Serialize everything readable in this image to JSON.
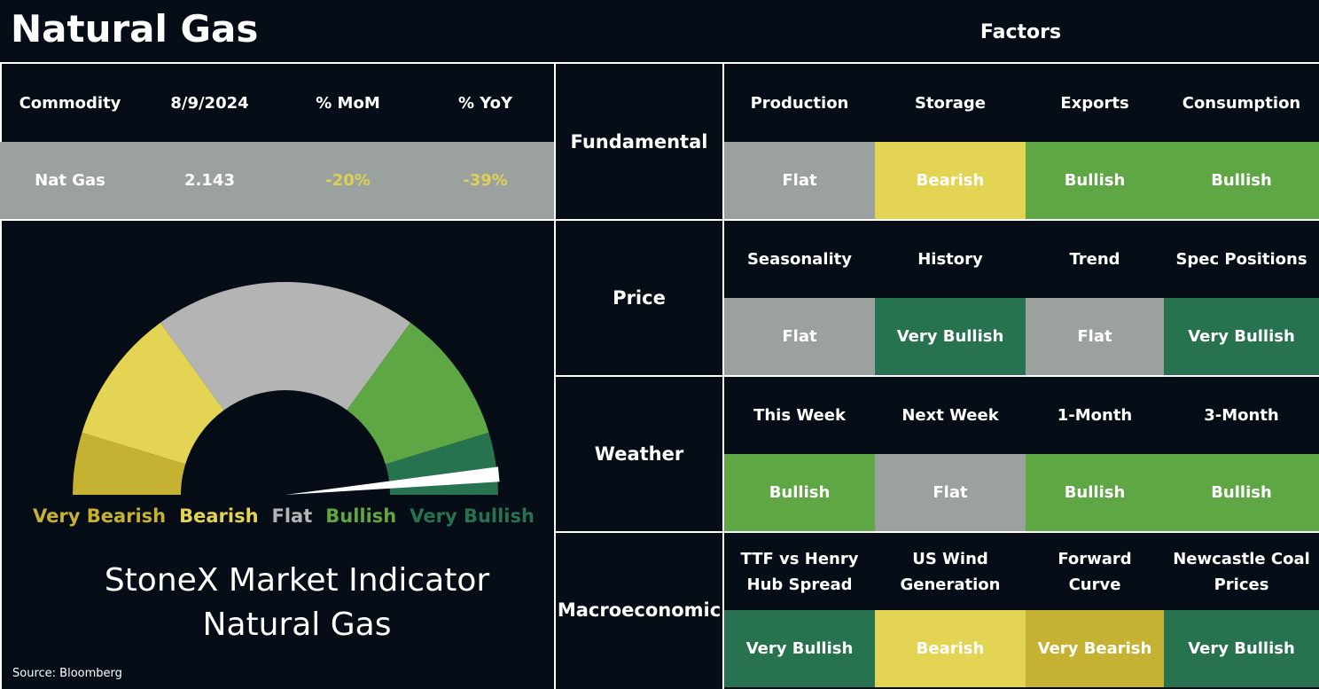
{
  "header": {
    "title": "Natural Gas",
    "factors_title": "Factors"
  },
  "commodity_table": {
    "columns": [
      "Commodity",
      "8/9/2024",
      "% MoM",
      "% YoY"
    ],
    "row": [
      "Nat Gas",
      "2.143",
      "-20%",
      "-39%"
    ],
    "row_colors": [
      "#ffffff",
      "#ffffff",
      "#e0cf55",
      "#e0cf55"
    ]
  },
  "gauge": {
    "type": "gauge",
    "segments": [
      {
        "name": "Very Bearish",
        "color": "#c5b232",
        "span": 17
      },
      {
        "name": "Bearish",
        "color": "#e3d454",
        "span": 37
      },
      {
        "name": "Flat",
        "color": "#b4b4b4",
        "span": 72
      },
      {
        "name": "Bullish",
        "color": "#5ea744",
        "span": 37
      },
      {
        "name": "Very Bullish",
        "color": "#277350",
        "span": 17
      }
    ],
    "needle": 174.5
  },
  "indicator_title": [
    "StoneX Market Indicator",
    "Natural Gas"
  ],
  "source": "Source: Bloomberg",
  "factor_groups": [
    {
      "group": "Fundamental",
      "factors": [
        {
          "name": "Production",
          "signal": "Flat",
          "color": "#9aa19f"
        },
        {
          "name": "Storage",
          "signal": "Bearish",
          "color": "#e3d454"
        },
        {
          "name": "Exports",
          "signal": "Bullish",
          "color": "#5ea744"
        },
        {
          "name": "Consumption",
          "signal": "Bullish",
          "color": "#5ea744"
        }
      ]
    },
    {
      "group": "Price",
      "factors": [
        {
          "name": "Seasonality",
          "signal": "Flat",
          "color": "#9aa19f"
        },
        {
          "name": "History",
          "signal": "Very Bullish",
          "color": "#277350"
        },
        {
          "name": "Trend",
          "signal": "Flat",
          "color": "#9aa19f"
        },
        {
          "name": "Spec Positions",
          "signal": "Very Bullish",
          "color": "#277350"
        }
      ]
    },
    {
      "group": "Weather",
      "factors": [
        {
          "name": "This Week",
          "signal": "Bullish",
          "color": "#5ea744"
        },
        {
          "name": "Next Week",
          "signal": "Flat",
          "color": "#9aa19f"
        },
        {
          "name": "1-Month",
          "signal": "Bullish",
          "color": "#5ea744"
        },
        {
          "name": "3-Month",
          "signal": "Bullish",
          "color": "#5ea744"
        }
      ]
    },
    {
      "group": "Macroeconomic",
      "factors": [
        {
          "name": "TTF vs Henry Hub Spread",
          "signal": "Very Bullish",
          "color": "#277350"
        },
        {
          "name": "US Wind Generation",
          "signal": "Bearish",
          "color": "#e3d454"
        },
        {
          "name": "Forward Curve",
          "signal": "Very Bearish",
          "color": "#c5b232"
        },
        {
          "name": "Newcastle Coal Prices",
          "signal": "Very Bullish",
          "color": "#277350"
        }
      ]
    }
  ]
}
